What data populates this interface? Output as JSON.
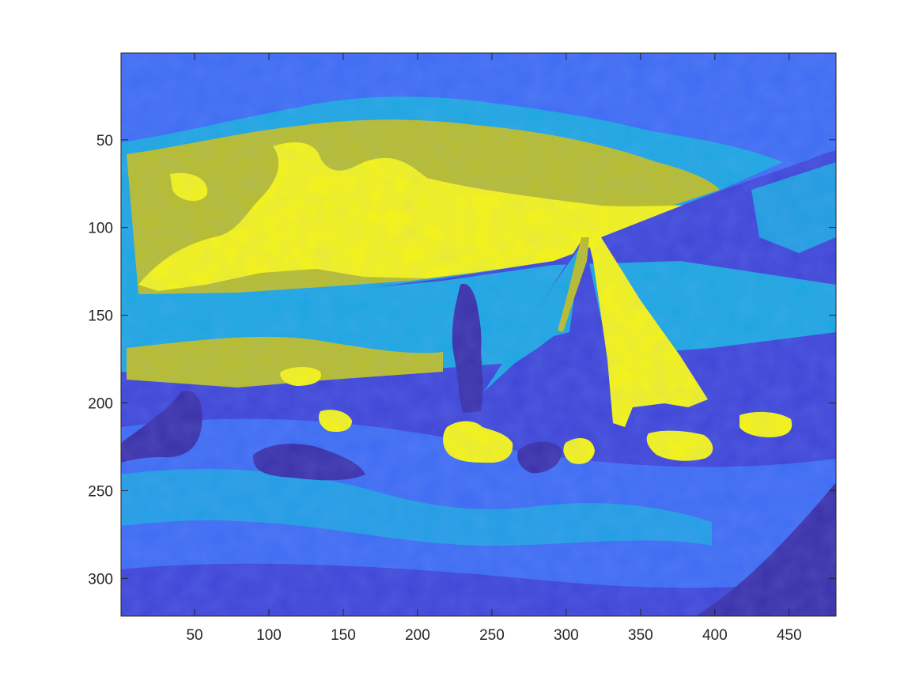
{
  "chart_data": {
    "type": "heatmap",
    "title": "",
    "xlabel": "",
    "ylabel": "",
    "image_size": {
      "columns": 481,
      "rows": 321
    },
    "xlim": [
      0.5,
      481.5
    ],
    "ylim": [
      0.5,
      321.5
    ],
    "y_direction": "reversed",
    "x_ticks": [
      50,
      100,
      150,
      200,
      250,
      300,
      350,
      400,
      450
    ],
    "y_ticks": [
      50,
      100,
      150,
      200,
      250,
      300
    ],
    "colormap": "parula",
    "levels": 6,
    "level_colors": [
      "#3a2fa8",
      "#3f45d6",
      "#3e6bf2",
      "#1da6e0",
      "#b8bd2a",
      "#f6f414"
    ],
    "grid": false,
    "legend": "none",
    "description_regions": [
      {
        "label": "sky",
        "dominant_levels": [
          2,
          3
        ]
      },
      {
        "label": "bright clouds",
        "dominant_levels": [
          4,
          5
        ]
      },
      {
        "label": "sail",
        "dominant_levels": [
          1,
          5
        ]
      },
      {
        "label": "sea",
        "dominant_levels": [
          1,
          2,
          3
        ]
      }
    ]
  }
}
